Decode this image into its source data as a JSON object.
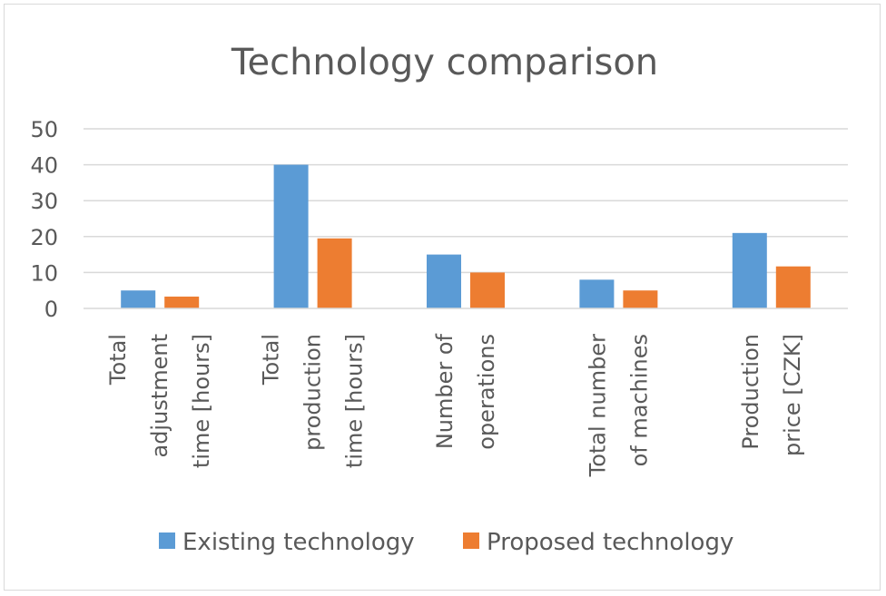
{
  "chart_data": {
    "type": "bar",
    "title": "Technology comparison",
    "categories": [
      "Total adjustment time [hours]",
      "Total production time [hours]",
      "Number of operations",
      "Total number of machines",
      "Production price [CZK]"
    ],
    "category_lines": [
      [
        "Total",
        "adjustment",
        "time [hours]"
      ],
      [
        "Total",
        "production",
        "time [hours]"
      ],
      [
        "Number of",
        "operations"
      ],
      [
        "Total number",
        "of machines"
      ],
      [
        "Production",
        "price [CZK]"
      ]
    ],
    "series": [
      {
        "name": "Existing technology",
        "values": [
          5,
          40,
          15,
          8,
          21
        ],
        "color": "#5b9bd5"
      },
      {
        "name": "Proposed technology",
        "values": [
          3.3,
          19.5,
          10,
          5,
          11.7
        ],
        "color": "#ed7d31"
      }
    ],
    "ylim": [
      0,
      50
    ],
    "yticks": [
      0,
      10,
      20,
      30,
      40,
      50
    ],
    "grid": true,
    "legend": "bottom",
    "xlabel": "",
    "ylabel": ""
  }
}
